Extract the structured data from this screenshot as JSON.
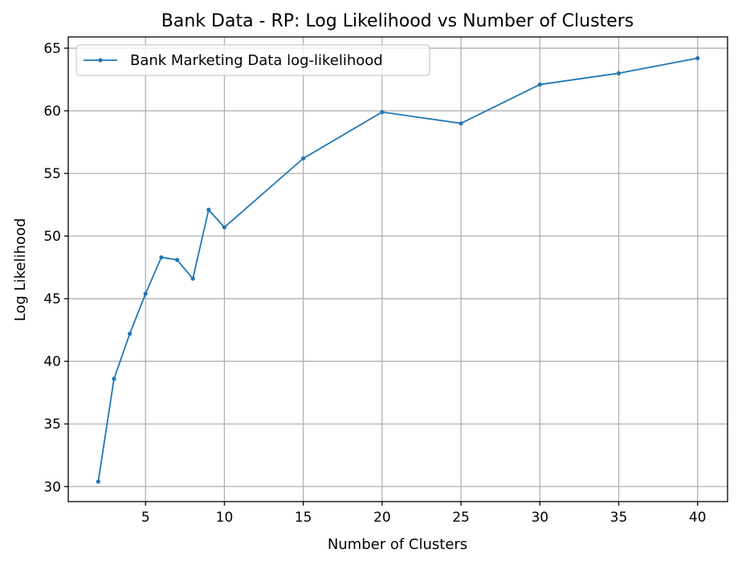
{
  "chart_data": {
    "type": "line",
    "title": "Bank Data - RP: Log Likelihood vs Number of Clusters",
    "xlabel": "Number of Clusters",
    "ylabel": "Log Likelihood",
    "xlim": [
      0.1,
      41.9
    ],
    "ylim": [
      28.8,
      65.9
    ],
    "xticks": [
      5,
      10,
      15,
      20,
      25,
      30,
      35,
      40
    ],
    "yticks": [
      30,
      35,
      40,
      45,
      50,
      55,
      60,
      65
    ],
    "grid": true,
    "legend_position": "top-left",
    "series": [
      {
        "name": "Bank Marketing Data log-likelihood",
        "color": "#1f77b4",
        "x": [
          2,
          3,
          4,
          5,
          6,
          7,
          8,
          9,
          10,
          15,
          20,
          25,
          30,
          35,
          40
        ],
        "y": [
          30.4,
          38.6,
          42.2,
          45.4,
          48.3,
          48.1,
          46.6,
          52.1,
          50.7,
          56.2,
          59.9,
          59.0,
          62.1,
          63.0,
          64.2
        ]
      }
    ]
  }
}
